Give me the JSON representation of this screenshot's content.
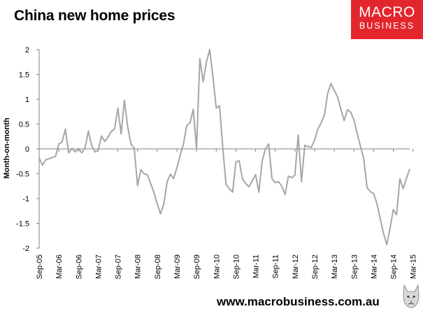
{
  "header": {
    "title": "China new home prices",
    "logo_line1": "MACRO",
    "logo_line2": "BUSINESS"
  },
  "footer": {
    "url": "www.macrobusiness.com.au"
  },
  "colors": {
    "line": "#a6a6a6",
    "logo_bg": "#e3262d",
    "axis": "#808080"
  },
  "chart_data": {
    "type": "line",
    "title": "China new home prices",
    "xlabel": "",
    "ylabel": "Month-on-month",
    "ylim": [
      -2,
      2
    ],
    "yticks": [
      2,
      1.5,
      1,
      0.5,
      0,
      -0.5,
      -1,
      -1.5,
      -2
    ],
    "ytick_labels": [
      "2",
      "1.5",
      "1",
      "0.5",
      "0",
      "-0.5",
      "-1",
      "-1.5",
      "-2"
    ],
    "x_start": "Sep-05",
    "x_frequency": "monthly",
    "xtick_labels": [
      "Sep-05",
      "Mar-06",
      "Sep-06",
      "Mar-07",
      "Sep-07",
      "Mar-08",
      "Sep-08",
      "Mar-09",
      "Sep-09",
      "Mar-10",
      "Sep-10",
      "Mar-11",
      "Sep-11",
      "Mar-12",
      "Sep-12",
      "Mar-13",
      "Sep-13",
      "Mar-14",
      "Sep-14",
      "Mar-15"
    ],
    "grid": false,
    "legend": "none",
    "series": [
      {
        "values": [
          -0.18,
          -0.33,
          -0.22,
          -0.2,
          -0.17,
          -0.15,
          0.1,
          0.14,
          0.4,
          -0.08,
          0.01,
          -0.06,
          0.01,
          -0.08,
          0.02,
          0.36,
          0.07,
          -0.06,
          -0.03,
          0.26,
          0.15,
          0.24,
          0.35,
          0.4,
          0.82,
          0.3,
          0.98,
          0.45,
          0.1,
          0.01,
          -0.74,
          -0.42,
          -0.5,
          -0.52,
          -0.7,
          -0.88,
          -1.1,
          -1.31,
          -1.12,
          -0.67,
          -0.51,
          -0.6,
          -0.38,
          -0.13,
          0.1,
          0.47,
          0.53,
          0.8,
          0.0,
          1.82,
          1.35,
          1.75,
          2.0,
          1.45,
          0.82,
          0.87,
          0.01,
          -0.72,
          -0.8,
          -0.87,
          -0.26,
          -0.24,
          -0.6,
          -0.7,
          -0.76,
          -0.64,
          -0.52,
          -0.87,
          -0.25,
          0.0,
          0.1,
          -0.6,
          -0.68,
          -0.66,
          -0.75,
          -0.92,
          -0.55,
          -0.58,
          -0.53,
          0.28,
          -0.66,
          0.07,
          0.05,
          0.03,
          0.18,
          0.4,
          0.53,
          0.69,
          1.12,
          1.32,
          1.18,
          1.05,
          0.8,
          0.57,
          0.79,
          0.74,
          0.58,
          0.3,
          0.05,
          -0.2,
          -0.78,
          -0.86,
          -0.9,
          -1.1,
          -1.4,
          -1.7,
          -1.93,
          -1.6,
          -1.22,
          -1.33,
          -0.6,
          -0.8,
          -0.6,
          -0.4
        ]
      }
    ]
  }
}
